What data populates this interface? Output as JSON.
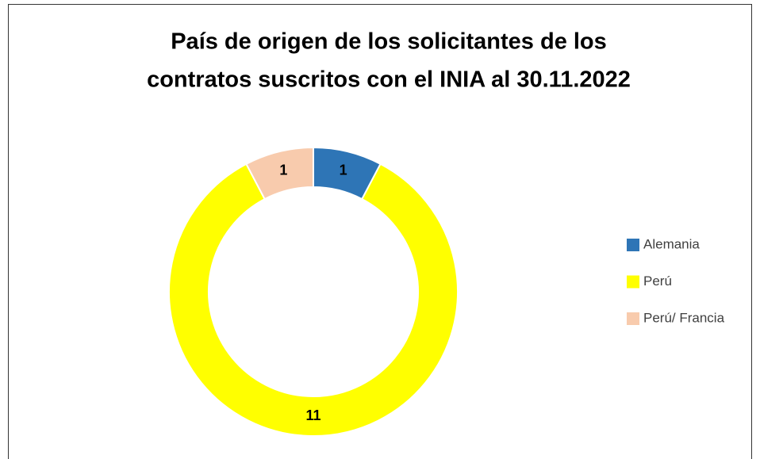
{
  "chart_data": {
    "type": "donut",
    "title": [
      "País de origen de los solicitantes de los",
      "contratos suscritos con el INIA al 30.11.2022"
    ],
    "categories": [
      "Alemania",
      "Perú",
      "Perú/ Francia"
    ],
    "values": [
      1,
      11,
      1
    ],
    "colors": [
      "#2e75b6",
      "#ffff00",
      "#f8cbad"
    ],
    "legend": "right"
  }
}
